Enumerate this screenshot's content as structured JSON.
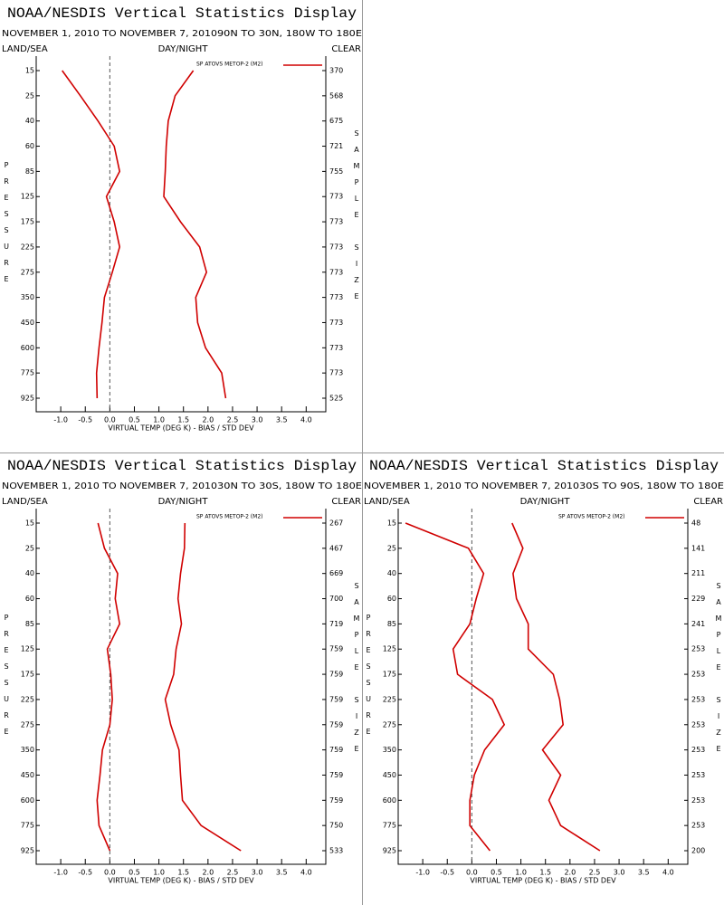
{
  "chart_data": [
    {
      "type": "line",
      "title": "NOAA/NESDIS Vertical Statistics Display",
      "subtitle": "NOVEMBER 1, 2010 TO NOVEMBER 7, 2010",
      "region": "90N TO 30N, 180W TO 180E",
      "header_left": "LAND/SEA",
      "header_center": "DAY/NIGHT",
      "header_right": "CLEAR",
      "ylabel": "PRESSURE",
      "y2label": "SAMPLE SIZE",
      "xlabel": "VIRTUAL TEMP (DEG K) - BIAS / STD DEV",
      "categories": [
        15,
        25,
        40,
        60,
        85,
        125,
        175,
        225,
        275,
        350,
        450,
        600,
        775,
        925
      ],
      "sample_size": [
        370,
        568,
        675,
        721,
        755,
        773,
        773,
        773,
        773,
        773,
        773,
        773,
        773,
        525
      ],
      "xlim": [
        -1.5,
        4.4
      ],
      "xticks": [
        {
          "value": -1,
          "label": "-1.0"
        },
        -0.5,
        {
          "value": 0,
          "label": "0.0"
        },
        0.5,
        {
          "value": 1,
          "label": "1.0"
        },
        1.5,
        {
          "value": 2,
          "label": "2.0"
        },
        2.5,
        {
          "value": 3,
          "label": "3.0"
        },
        3.5,
        {
          "value": 4,
          "label": "4.0"
        }
      ],
      "series": [
        {
          "name": "SP ATOVS METOP-2 (M2)",
          "color": "#d00000",
          "values": [
            -0.97,
            -0.6,
            -0.24,
            0.09,
            0.2,
            -0.07,
            0.09,
            0.2,
            0.05,
            -0.11,
            -0.16,
            -0.22,
            -0.27,
            -0.26
          ]
        },
        {
          "color": "#d00000",
          "values": [
            1.7,
            1.33,
            1.19,
            1.15,
            1.13,
            1.1,
            1.44,
            1.83,
            1.97,
            1.75,
            1.79,
            1.95,
            2.28,
            2.36
          ]
        }
      ]
    },
    {
      "type": "line",
      "title": "NOAA/NESDIS Vertical Statistics Display",
      "subtitle": "NOVEMBER 1, 2010 TO NOVEMBER 7, 2010",
      "region": "30N TO 30S, 180W TO 180E",
      "header_left": "LAND/SEA",
      "header_center": "DAY/NIGHT",
      "header_right": "CLEAR",
      "ylabel": "PRESSURE",
      "y2label": "SAMPLE SIZE",
      "xlabel": "VIRTUAL TEMP (DEG K) - BIAS / STD DEV",
      "categories": [
        15,
        25,
        40,
        60,
        85,
        125,
        175,
        225,
        275,
        350,
        450,
        600,
        775,
        925
      ],
      "sample_size": [
        267,
        467,
        669,
        700,
        719,
        759,
        759,
        759,
        759,
        759,
        759,
        759,
        750,
        533
      ],
      "xlim": [
        -1.5,
        4.4
      ],
      "xticks": [
        {
          "value": -1,
          "label": "-1.0"
        },
        -0.5,
        {
          "value": 0,
          "label": "0.0"
        },
        0.5,
        {
          "value": 1,
          "label": "1.0"
        },
        1.5,
        {
          "value": 2,
          "label": "2.0"
        },
        2.5,
        {
          "value": 3,
          "label": "3.0"
        },
        3.5,
        {
          "value": 4,
          "label": "4.0"
        }
      ],
      "series": [
        {
          "name": "SP ATOVS METOP-2 (M2)",
          "color": "#d00000",
          "values": [
            -0.24,
            -0.11,
            0.16,
            0.11,
            0.2,
            -0.05,
            0.02,
            0.05,
            0,
            -0.15,
            -0.2,
            -0.26,
            -0.22,
            0
          ]
        },
        {
          "color": "#d00000",
          "values": [
            1.53,
            1.52,
            1.44,
            1.39,
            1.46,
            1.35,
            1.3,
            1.13,
            1.24,
            1.41,
            1.44,
            1.48,
            1.86,
            2.67
          ]
        }
      ]
    },
    {
      "type": "line",
      "title": "NOAA/NESDIS Vertical Statistics Display",
      "subtitle": "NOVEMBER 1, 2010 TO NOVEMBER 7, 2010",
      "region": "30S TO 90S, 180W TO 180E",
      "header_left": "LAND/SEA",
      "header_center": "DAY/NIGHT",
      "header_right": "CLEAR",
      "ylabel": "PRESSURE",
      "y2label": "SAMPLE SIZE",
      "xlabel": "VIRTUAL TEMP (DEG K) - BIAS / STD DEV",
      "categories": [
        15,
        25,
        40,
        60,
        85,
        125,
        175,
        225,
        275,
        350,
        450,
        600,
        775,
        925
      ],
      "sample_size": [
        48,
        141,
        211,
        229,
        241,
        253,
        253,
        253,
        253,
        253,
        253,
        253,
        253,
        200
      ],
      "xlim": [
        -1.5,
        4.4
      ],
      "xticks": [
        {
          "value": -1,
          "label": "-1.0"
        },
        -0.5,
        {
          "value": 0,
          "label": "0.0"
        },
        0.5,
        {
          "value": 1,
          "label": "1.0"
        },
        1.5,
        {
          "value": 2,
          "label": "2.0"
        },
        2.5,
        {
          "value": 3,
          "label": "3.0"
        },
        3.5,
        {
          "value": 4,
          "label": "4.0"
        }
      ],
      "series": [
        {
          "name": "SP ATOVS METOP-2 (M2)",
          "color": "#d00000",
          "values": [
            -1.35,
            -0.07,
            0.24,
            0.09,
            -0.04,
            -0.38,
            -0.29,
            0.42,
            0.66,
            0.26,
            0.05,
            -0.04,
            -0.04,
            0.37
          ]
        },
        {
          "color": "#d00000",
          "values": [
            0.82,
            1.04,
            0.84,
            0.91,
            1.15,
            1.15,
            1.66,
            1.79,
            1.86,
            1.44,
            1.81,
            1.57,
            1.81,
            2.61
          ]
        }
      ]
    }
  ]
}
